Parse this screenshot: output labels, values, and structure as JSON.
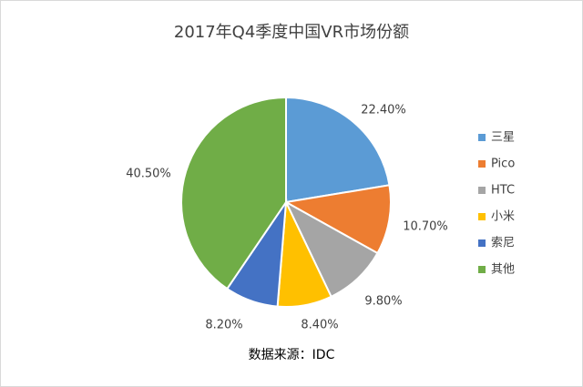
{
  "chart_data": {
    "type": "pie",
    "title": "2017年Q4季度中国VR市场份额",
    "source_note": "数据来源：IDC",
    "legend_position": "right",
    "slices": [
      {
        "name": "三星",
        "value": 22.4,
        "label": "22.40%",
        "color": "#5b9bd5"
      },
      {
        "name": "Pico",
        "value": 10.7,
        "label": "10.70%",
        "color": "#ed7d31"
      },
      {
        "name": "HTC",
        "value": 9.8,
        "label": "9.80%",
        "color": "#a5a5a5"
      },
      {
        "name": "小米",
        "value": 8.4,
        "label": "8.40%",
        "color": "#ffc000"
      },
      {
        "name": "索尼",
        "value": 8.2,
        "label": "8.20%",
        "color": "#4472c4"
      },
      {
        "name": "其他",
        "value": 40.5,
        "label": "40.50%",
        "color": "#70ad47"
      }
    ]
  }
}
